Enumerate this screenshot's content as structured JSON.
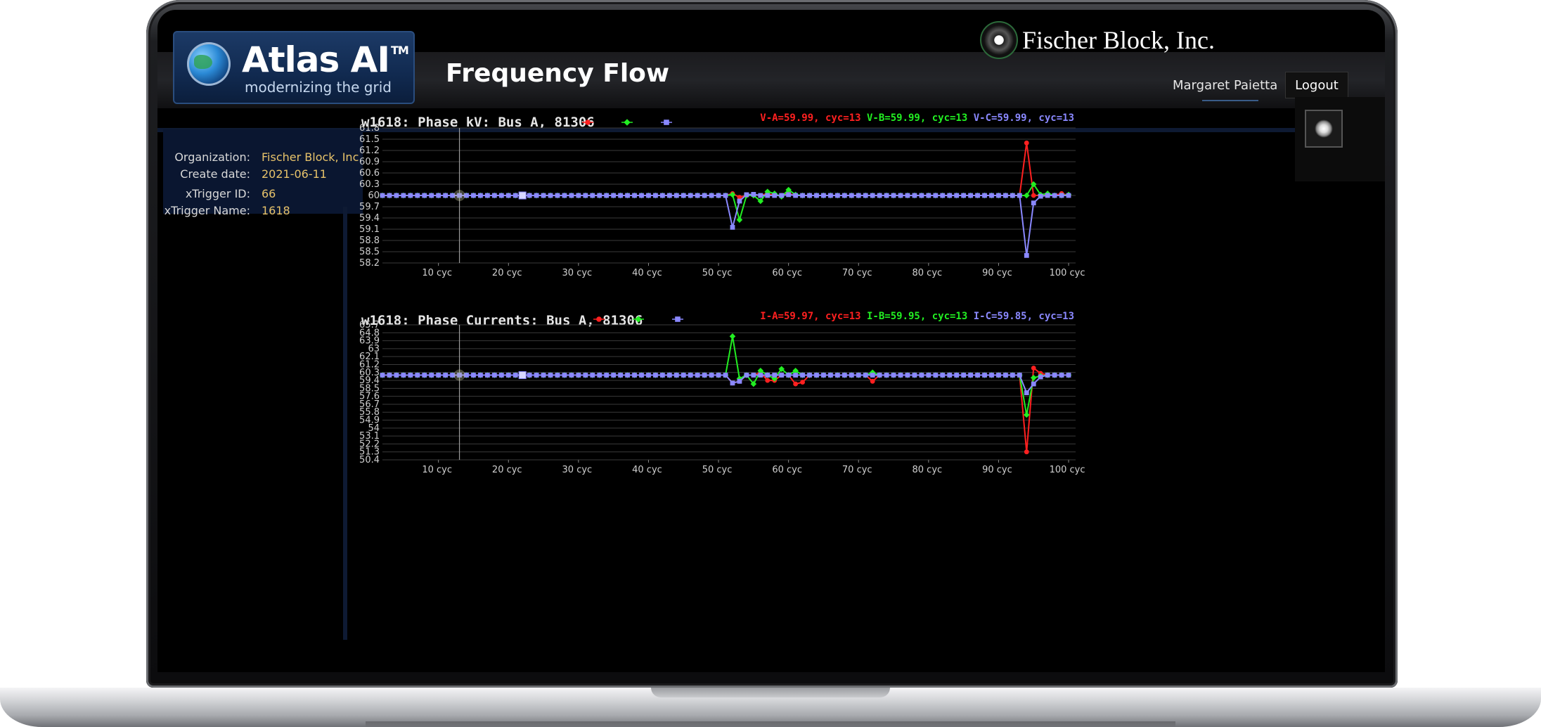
{
  "app": {
    "brand_name": "Atlas AI",
    "brand_tm": "TM",
    "brand_tagline": "modernizing the grid",
    "page_title": "Frequency Flow",
    "company": "Fischer Block, Inc.",
    "user": "Margaret Paietta",
    "logout_label": "Logout"
  },
  "info": [
    {
      "label": "Organization:",
      "value": "Fischer Block, Inc"
    },
    {
      "label": "Create date:",
      "value": "2021-06-11"
    },
    {
      "label": "xTrigger ID:",
      "value": "66"
    },
    {
      "label": "xTrigger Name:",
      "value": "1618"
    }
  ],
  "colors": {
    "phase_a": "#ff2020",
    "phase_b": "#22ee22",
    "phase_c": "#8a88ff"
  },
  "chart_data": [
    {
      "type": "line",
      "title": "w1618: Phase kV: Bus A, 81306",
      "y_ticks": [
        "61.8",
        "61.5",
        "61.2",
        "60.9",
        "60.6",
        "60.3",
        "60",
        "59.7",
        "59.4",
        "59.1",
        "58.8",
        "58.5",
        "58.2"
      ],
      "x_ticks": [
        "10 cyc",
        "20 cyc",
        "30 cyc",
        "40 cyc",
        "50 cyc",
        "60 cyc",
        "70 cyc",
        "80 cyc",
        "90 cyc",
        "100 cyc"
      ],
      "ylim": [
        58.2,
        61.8
      ],
      "xlim": [
        2,
        101
      ],
      "cursor_x": 13,
      "highlight_x": 22,
      "legend": [
        {
          "label": "V-A=59.99, cyc=13",
          "color": "#ff2020"
        },
        {
          "label": "V-B=59.99, cyc=13",
          "color": "#22ee22"
        },
        {
          "label": "V-C=59.99, cyc=13",
          "color": "#8a88ff"
        }
      ],
      "series": [
        {
          "name": "V-A",
          "color": "#ff2020",
          "marker": "circle",
          "points": [
            [
              51,
              60.0
            ],
            [
              52,
              60.05
            ],
            [
              53,
              59.95
            ],
            [
              54,
              60.0
            ],
            [
              55,
              60.02
            ],
            [
              56,
              60.0
            ],
            [
              57,
              60.05
            ],
            [
              58,
              60.0
            ],
            [
              59,
              60.0
            ],
            [
              60,
              60.05
            ],
            [
              61,
              60.0
            ],
            [
              92,
              60.0
            ],
            [
              93,
              60.0
            ],
            [
              94,
              61.4
            ],
            [
              95,
              60.0
            ],
            [
              96,
              60.0
            ],
            [
              97,
              60.0
            ],
            [
              98,
              60.0
            ],
            [
              99,
              60.05
            ],
            [
              100,
              60.0
            ]
          ]
        },
        {
          "name": "V-B",
          "color": "#22ee22",
          "marker": "diamond",
          "points": [
            [
              51,
              60.0
            ],
            [
              52,
              60.02
            ],
            [
              53,
              59.35
            ],
            [
              54,
              60.0
            ],
            [
              55,
              60.0
            ],
            [
              56,
              59.85
            ],
            [
              57,
              60.1
            ],
            [
              58,
              60.05
            ],
            [
              59,
              59.97
            ],
            [
              60,
              60.15
            ],
            [
              61,
              60.02
            ],
            [
              92,
              60.0
            ],
            [
              93,
              60.0
            ],
            [
              94,
              60.0
            ],
            [
              95,
              60.3
            ],
            [
              96,
              60.02
            ],
            [
              97,
              60.05
            ],
            [
              98,
              60.0
            ],
            [
              99,
              60.0
            ],
            [
              100,
              60.02
            ]
          ]
        },
        {
          "name": "V-C",
          "color": "#8a88ff",
          "marker": "square",
          "points": [
            [
              51,
              60.0
            ],
            [
              52,
              59.15
            ],
            [
              53,
              59.85
            ],
            [
              54,
              60.02
            ],
            [
              55,
              60.03
            ],
            [
              56,
              60.0
            ],
            [
              57,
              60.0
            ],
            [
              58,
              60.0
            ],
            [
              59,
              60.0
            ],
            [
              60,
              60.02
            ],
            [
              61,
              60.0
            ],
            [
              92,
              60.0
            ],
            [
              93,
              60.0
            ],
            [
              94,
              58.4
            ],
            [
              95,
              59.8
            ],
            [
              96,
              59.98
            ],
            [
              97,
              60.0
            ],
            [
              98,
              60.0
            ],
            [
              99,
              60.0
            ],
            [
              100,
              60.0
            ]
          ]
        }
      ]
    },
    {
      "type": "line",
      "title": "w1618: Phase Currents: Bus A, 81306",
      "y_ticks": [
        "65.7",
        "64.8",
        "63.9",
        "63",
        "62.1",
        "61.2",
        "60.3",
        "59.4",
        "58.5",
        "57.6",
        "56.7",
        "55.8",
        "54.9",
        "54",
        "53.1",
        "52.2",
        "51.3",
        "50.4"
      ],
      "x_ticks": [
        "10 cyc",
        "20 cyc",
        "30 cyc",
        "40 cyc",
        "50 cyc",
        "60 cyc",
        "70 cyc",
        "80 cyc",
        "90 cyc",
        "100 cyc"
      ],
      "ylim": [
        50.4,
        65.7
      ],
      "xlim": [
        2,
        101
      ],
      "cursor_x": 13,
      "highlight_x": 22,
      "legend": [
        {
          "label": "I-A=59.97, cyc=13",
          "color": "#ff2020"
        },
        {
          "label": "I-B=59.95, cyc=13",
          "color": "#22ee22"
        },
        {
          "label": "I-C=59.85, cyc=13",
          "color": "#8a88ff"
        }
      ],
      "series": [
        {
          "name": "I-A",
          "color": "#ff2020",
          "marker": "circle",
          "points": [
            [
              51,
              60.0
            ],
            [
              52,
              59.1
            ],
            [
              53,
              59.3
            ],
            [
              54,
              60.0
            ],
            [
              55,
              60.0
            ],
            [
              56,
              60.3
            ],
            [
              57,
              59.4
            ],
            [
              58,
              59.4
            ],
            [
              59,
              60.0
            ],
            [
              60,
              60.0
            ],
            [
              61,
              59.0
            ],
            [
              62,
              59.2
            ],
            [
              71,
              60.0
            ],
            [
              72,
              59.3
            ],
            [
              73,
              60.0
            ],
            [
              92,
              60.0
            ],
            [
              93,
              60.0
            ],
            [
              94,
              51.3
            ],
            [
              95,
              60.8
            ],
            [
              96,
              60.2
            ],
            [
              97,
              60.0
            ],
            [
              98,
              60.0
            ],
            [
              99,
              60.0
            ],
            [
              100,
              60.0
            ]
          ]
        },
        {
          "name": "I-B",
          "color": "#22ee22",
          "marker": "diamond",
          "points": [
            [
              51,
              60.0
            ],
            [
              52,
              64.4
            ],
            [
              53,
              59.6
            ],
            [
              54,
              60.0
            ],
            [
              55,
              59.0
            ],
            [
              56,
              60.5
            ],
            [
              57,
              60.0
            ],
            [
              58,
              59.6
            ],
            [
              59,
              60.7
            ],
            [
              60,
              60.0
            ],
            [
              61,
              60.5
            ],
            [
              62,
              60.0
            ],
            [
              71,
              60.0
            ],
            [
              72,
              60.3
            ],
            [
              73,
              60.0
            ],
            [
              92,
              60.0
            ],
            [
              93,
              60.0
            ],
            [
              94,
              55.5
            ],
            [
              95,
              59.7
            ],
            [
              96,
              59.9
            ],
            [
              97,
              60.0
            ],
            [
              98,
              60.0
            ],
            [
              99,
              60.0
            ],
            [
              100,
              60.0
            ]
          ]
        },
        {
          "name": "I-C",
          "color": "#8a88ff",
          "marker": "square",
          "points": [
            [
              51,
              60.0
            ],
            [
              52,
              59.1
            ],
            [
              53,
              59.3
            ],
            [
              54,
              60.0
            ],
            [
              55,
              60.0
            ],
            [
              56,
              60.0
            ],
            [
              57,
              60.0
            ],
            [
              58,
              60.0
            ],
            [
              59,
              60.0
            ],
            [
              60,
              60.0
            ],
            [
              61,
              60.0
            ],
            [
              62,
              60.0
            ],
            [
              92,
              60.0
            ],
            [
              93,
              60.0
            ],
            [
              94,
              58.0
            ],
            [
              95,
              59.0
            ],
            [
              96,
              59.8
            ],
            [
              97,
              60.0
            ],
            [
              98,
              60.0
            ],
            [
              99,
              60.0
            ],
            [
              100,
              60.0
            ]
          ]
        }
      ]
    }
  ]
}
